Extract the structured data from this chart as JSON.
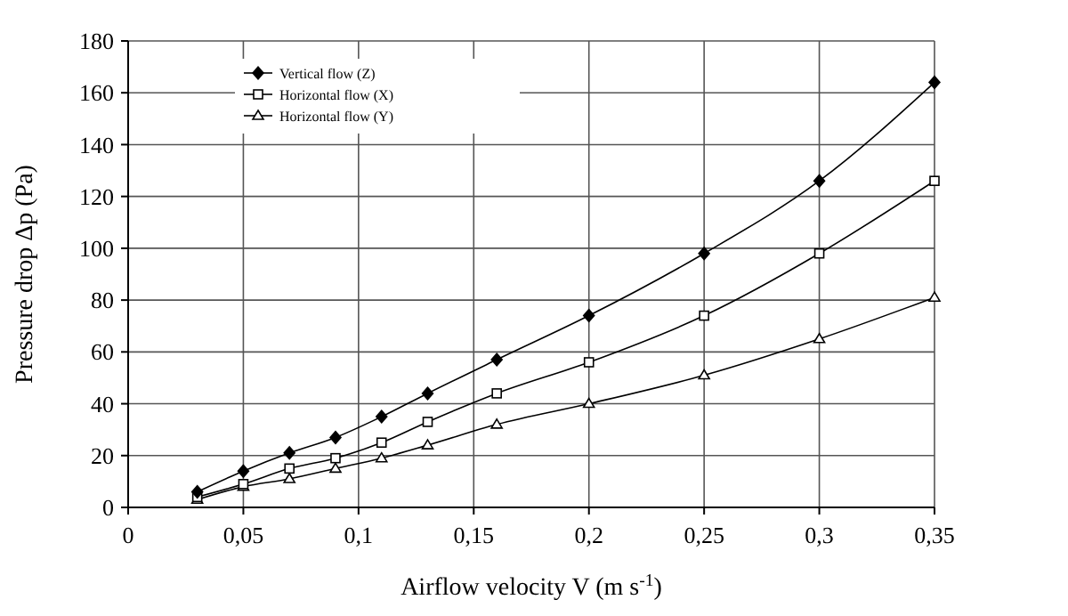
{
  "chart_data": {
    "type": "line",
    "xlabel": "Airflow velocity V (m s$^{-1}$)",
    "ylabel": "Pressure drop Δp (Pa)",
    "x": [
      0.03,
      0.05,
      0.07,
      0.09,
      0.11,
      0.13,
      0.16,
      0.2,
      0.25,
      0.3,
      0.35
    ],
    "series": [
      {
        "name": "Vertical flow (Z)",
        "color": "#000000",
        "marker": "diamond",
        "values": [
          6,
          14,
          21,
          27,
          35,
          44,
          57,
          74,
          98,
          126,
          164
        ]
      },
      {
        "name": "Horizontal flow (X)",
        "color": "#000000",
        "marker": "square",
        "values": [
          4,
          9,
          15,
          19,
          25,
          33,
          44,
          56,
          74,
          98,
          126
        ]
      },
      {
        "name": "Horizontal flow (Y)",
        "color": "#000000",
        "marker": "triangle",
        "values": [
          3,
          8,
          11,
          15,
          19,
          24,
          32,
          40,
          51,
          65,
          81
        ]
      }
    ],
    "xlim": [
      0,
      0.35
    ],
    "xticks": [
      0,
      {
        "value": 0.05,
        "label": "0,05"
      },
      {
        "value": 0.1,
        "label": "0,1"
      },
      {
        "value": 0.15,
        "label": "0,15"
      },
      {
        "value": 0.2,
        "label": "0,2"
      },
      {
        "value": 0.25,
        "label": "0,25"
      },
      {
        "value": 0.3,
        "label": "0,3"
      },
      {
        "value": 0.35,
        "label": "0,35"
      }
    ],
    "ylim": [
      0,
      180
    ],
    "yticks": [
      0,
      20,
      40,
      60,
      80,
      100,
      120,
      140,
      160,
      180
    ],
    "grid": true,
    "legend": "top left",
    "line_style": "solid"
  }
}
